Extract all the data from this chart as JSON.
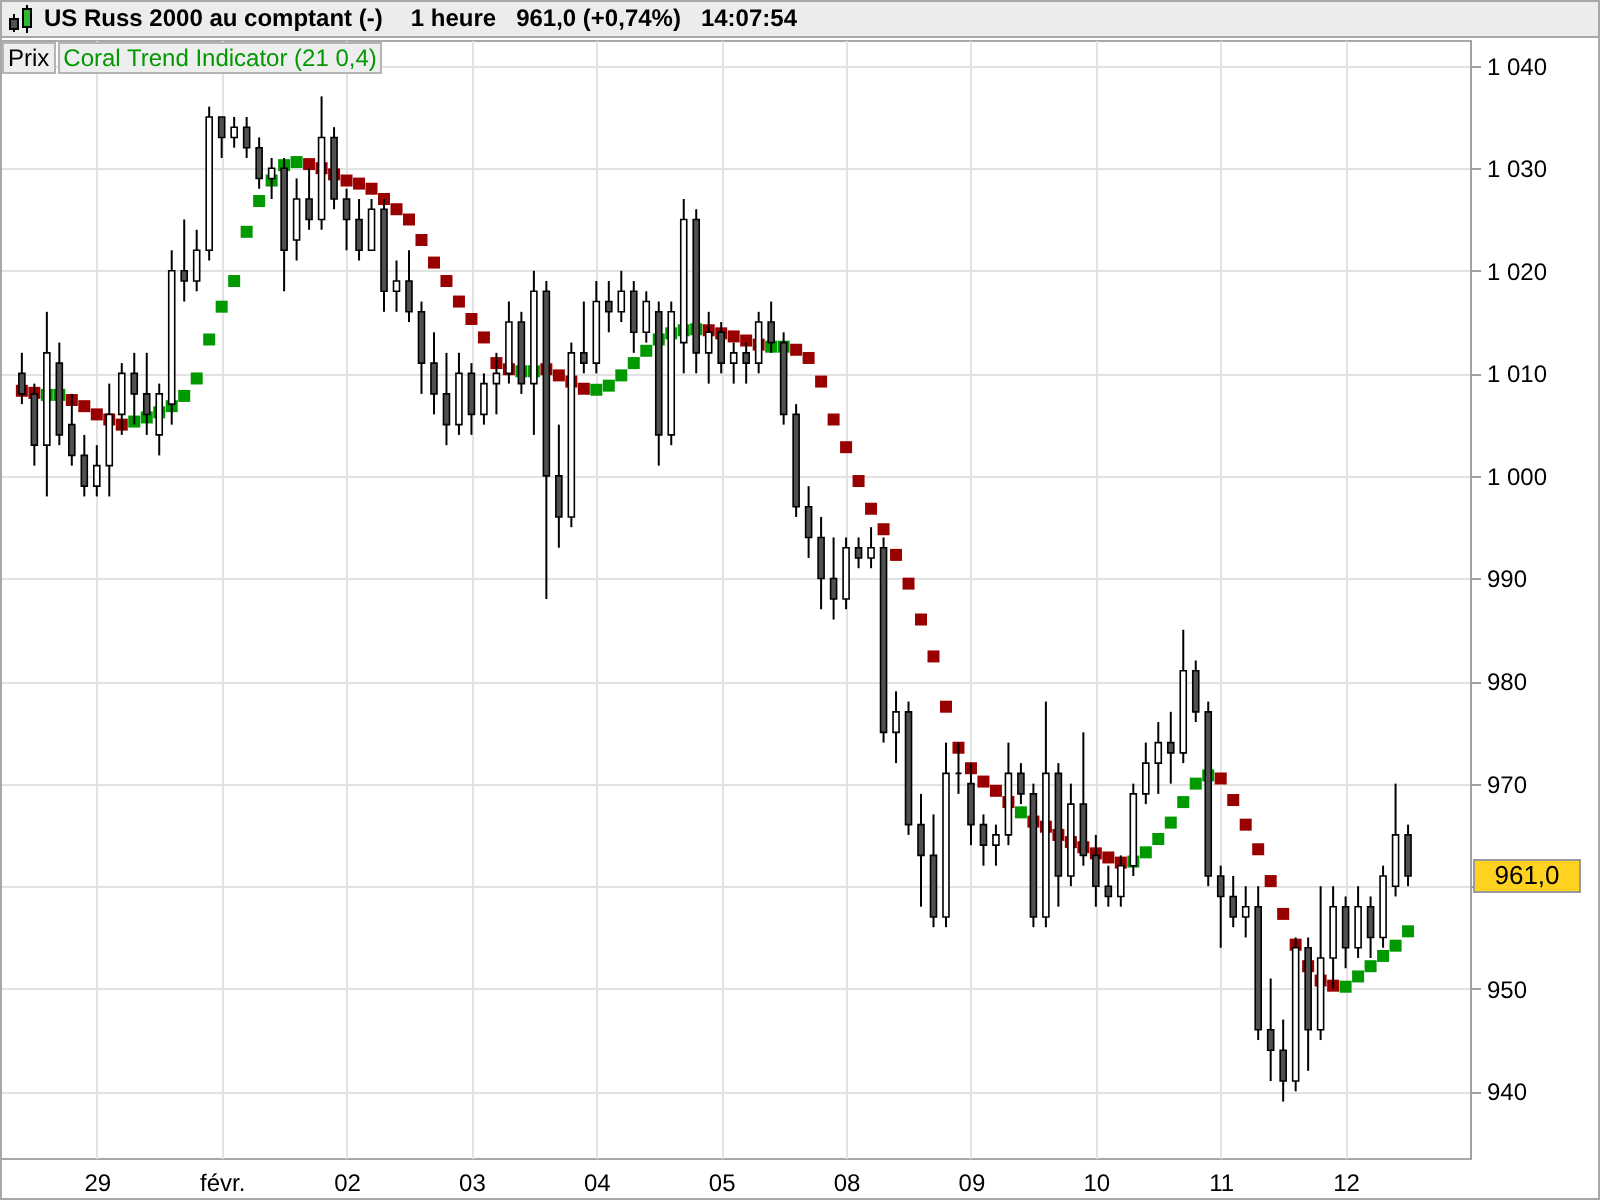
{
  "chart_data": {
    "type": "candlestick",
    "title": "US Russ 2000 au comptant (-)",
    "subtitle": "1 heure   961,0 (+0,74%)   14:07:54",
    "categories": [
      null,
      null,
      null,
      null,
      null,
      null,
      "29",
      null,
      null,
      null,
      null,
      null,
      null,
      null,
      null,
      null,
      "févr.",
      null,
      null,
      null,
      null,
      null,
      null,
      null,
      null,
      null,
      "02",
      null,
      null,
      null,
      null,
      null,
      null,
      null,
      null,
      null,
      "03",
      null,
      null,
      null,
      null,
      null,
      null,
      null,
      null,
      null,
      "04",
      null,
      null,
      null,
      null,
      null,
      null,
      null,
      null,
      null,
      "05",
      null,
      null,
      null,
      null,
      null,
      null,
      null,
      null,
      null,
      "08",
      null,
      null,
      null,
      null,
      null,
      null,
      null,
      null,
      null,
      "09",
      null,
      null,
      null,
      null,
      null,
      null,
      null,
      null,
      null,
      "10",
      null,
      null,
      null,
      null,
      null,
      null,
      null,
      null,
      null,
      "11",
      null,
      null,
      null,
      null,
      null,
      null,
      null,
      null,
      null,
      "12",
      null,
      null,
      null,
      null,
      null
    ],
    "ohlc": [
      [
        1010,
        1012,
        1007,
        1008
      ],
      [
        1008,
        1009,
        1001,
        1003
      ],
      [
        1003,
        1016,
        998,
        1012
      ],
      [
        1011,
        1013,
        1003,
        1004
      ],
      [
        1005,
        1008,
        1001,
        1002
      ],
      [
        1002,
        1004,
        998,
        999
      ],
      [
        999,
        1003,
        998,
        1001
      ],
      [
        1001,
        1009,
        998,
        1006
      ],
      [
        1006,
        1011,
        1004,
        1010
      ],
      [
        1010,
        1012,
        1005,
        1008
      ],
      [
        1008,
        1012,
        1004,
        1006
      ],
      [
        1004,
        1009,
        1002,
        1008
      ],
      [
        1007,
        1022,
        1005,
        1020
      ],
      [
        1020,
        1025,
        1017,
        1019
      ],
      [
        1019,
        1024,
        1018,
        1022
      ],
      [
        1022,
        1036,
        1021,
        1035
      ],
      [
        1035,
        1035,
        1031,
        1033
      ],
      [
        1033,
        1035,
        1032,
        1034
      ],
      [
        1034,
        1035,
        1031,
        1032
      ],
      [
        1032,
        1033,
        1028,
        1029
      ],
      [
        1029,
        1031,
        1027,
        1030
      ],
      [
        1030,
        1031,
        1018,
        1022
      ],
      [
        1023,
        1029,
        1021,
        1027
      ],
      [
        1027,
        1030,
        1024,
        1025
      ],
      [
        1025,
        1037,
        1024,
        1033
      ],
      [
        1033,
        1034,
        1026,
        1027
      ],
      [
        1027,
        1028,
        1022,
        1025
      ],
      [
        1025,
        1027,
        1021,
        1022
      ],
      [
        1022,
        1027,
        1022,
        1026
      ],
      [
        1026,
        1027,
        1016,
        1018
      ],
      [
        1018,
        1021,
        1016,
        1019
      ],
      [
        1019,
        1022,
        1015,
        1016
      ],
      [
        1016,
        1017,
        1008,
        1011
      ],
      [
        1011,
        1014,
        1006,
        1008
      ],
      [
        1008,
        1012,
        1003,
        1005
      ],
      [
        1005,
        1012,
        1004,
        1010
      ],
      [
        1010,
        1011,
        1004,
        1006
      ],
      [
        1006,
        1010,
        1005,
        1009
      ],
      [
        1009,
        1012,
        1006,
        1010
      ],
      [
        1010,
        1017,
        1009,
        1015
      ],
      [
        1015,
        1016,
        1008,
        1009
      ],
      [
        1009,
        1020,
        1004,
        1018
      ],
      [
        1018,
        1019,
        988,
        1000
      ],
      [
        1000,
        1005,
        993,
        996
      ],
      [
        996,
        1013,
        995,
        1012
      ],
      [
        1012,
        1017,
        1010,
        1011
      ],
      [
        1011,
        1019,
        1010,
        1017
      ],
      [
        1017,
        1019,
        1014,
        1016
      ],
      [
        1016,
        1020,
        1015,
        1018
      ],
      [
        1018,
        1019,
        1012,
        1014
      ],
      [
        1014,
        1018,
        1013,
        1017
      ],
      [
        1016,
        1017,
        1001,
        1004
      ],
      [
        1004,
        1017,
        1003,
        1016
      ],
      [
        1013,
        1027,
        1010,
        1025
      ],
      [
        1025,
        1026,
        1010,
        1012
      ],
      [
        1012,
        1016,
        1009,
        1014
      ],
      [
        1014,
        1015,
        1010,
        1011
      ],
      [
        1011,
        1013,
        1009,
        1012
      ],
      [
        1012,
        1013,
        1009,
        1011
      ],
      [
        1011,
        1016,
        1010,
        1015
      ],
      [
        1015,
        1017,
        1012,
        1013
      ],
      [
        1013,
        1014,
        1005,
        1006
      ],
      [
        1006,
        1007,
        996,
        997
      ],
      [
        997,
        999,
        992,
        994
      ],
      [
        994,
        996,
        987,
        990
      ],
      [
        990,
        994,
        986,
        988
      ],
      [
        988,
        994,
        987,
        993
      ],
      [
        993,
        994,
        991,
        992
      ],
      [
        992,
        995,
        991,
        993
      ],
      [
        993,
        994,
        974,
        975
      ],
      [
        975,
        979,
        972,
        977
      ],
      [
        977,
        978,
        965,
        966
      ],
      [
        966,
        969,
        958,
        963
      ],
      [
        963,
        967,
        956,
        957
      ],
      [
        957,
        974,
        956,
        971
      ],
      [
        971,
        974,
        969,
        971
      ],
      [
        970,
        972,
        964,
        966
      ],
      [
        966,
        967,
        962,
        964
      ],
      [
        964,
        966,
        962,
        965
      ],
      [
        965,
        974,
        964,
        971
      ],
      [
        971,
        972,
        968,
        969
      ],
      [
        969,
        970,
        956,
        957
      ],
      [
        957,
        978,
        956,
        971
      ],
      [
        971,
        972,
        958,
        961
      ],
      [
        961,
        970,
        960,
        968
      ],
      [
        968,
        975,
        962,
        963
      ],
      [
        963,
        965,
        958,
        960
      ],
      [
        960,
        962,
        958,
        959
      ],
      [
        959,
        963,
        958,
        962
      ],
      [
        962,
        970,
        961,
        969
      ],
      [
        969,
        974,
        968,
        972
      ],
      [
        972,
        976,
        969,
        974
      ],
      [
        974,
        977,
        970,
        973
      ],
      [
        973,
        985,
        972,
        981
      ],
      [
        981,
        982,
        976,
        977
      ],
      [
        977,
        978,
        960,
        961
      ],
      [
        961,
        962,
        954,
        959
      ],
      [
        959,
        961,
        956,
        957
      ],
      [
        957,
        960,
        955,
        958
      ],
      [
        958,
        960,
        945,
        946
      ],
      [
        946,
        951,
        941,
        944
      ],
      [
        944,
        947,
        939,
        941
      ],
      [
        941,
        955,
        940,
        954
      ],
      [
        954,
        955,
        942,
        946
      ],
      [
        946,
        960,
        945,
        953
      ],
      [
        953,
        960,
        950,
        958
      ],
      [
        958,
        959,
        952,
        954
      ],
      [
        954,
        960,
        953,
        958
      ],
      [
        958,
        959,
        953,
        955
      ],
      [
        955,
        962,
        954,
        961
      ],
      [
        960,
        970,
        959,
        965
      ],
      [
        965,
        966,
        960,
        961
      ]
    ],
    "series": [
      {
        "name": "Coral Trend Indicator (21 0,4)",
        "type": "scatter",
        "color": "#009900",
        "colors": [
          "#990000",
          "#990000",
          "#009900",
          "#009900",
          "#990000",
          "#990000",
          "#990000",
          "#990000",
          "#990000",
          "#009900",
          "#009900",
          "#009900",
          "#009900",
          "#009900",
          "#009900",
          "#009900",
          "#009900",
          "#009900",
          "#009900",
          "#009900",
          "#009900",
          "#009900",
          "#009900",
          "#990000",
          "#990000",
          "#990000",
          "#990000",
          "#990000",
          "#990000",
          "#990000",
          "#990000",
          "#990000",
          "#990000",
          "#990000",
          "#990000",
          "#990000",
          "#990000",
          "#990000",
          "#990000",
          "#990000",
          "#009900",
          "#009900",
          "#990000",
          "#990000",
          "#990000",
          "#990000",
          "#009900",
          "#009900",
          "#009900",
          "#009900",
          "#009900",
          "#009900",
          "#009900",
          "#009900",
          "#009900",
          "#990000",
          "#990000",
          "#990000",
          "#990000",
          "#990000",
          "#009900",
          "#009900",
          "#990000",
          "#990000",
          "#990000",
          "#990000",
          "#990000",
          "#990000",
          "#990000",
          "#990000",
          "#990000",
          "#990000",
          "#990000",
          "#990000",
          "#990000",
          "#990000",
          "#990000",
          "#990000",
          "#990000",
          "#990000",
          "#009900",
          "#990000",
          "#990000",
          "#990000",
          "#990000",
          "#990000",
          "#990000",
          "#990000",
          "#990000",
          "#009900",
          "#009900",
          "#009900",
          "#009900",
          "#009900",
          "#009900",
          "#009900",
          "#990000",
          "#990000",
          "#990000",
          "#990000",
          "#990000",
          "#990000",
          "#990000",
          "#990000",
          "#990000",
          "#990000",
          "#009900",
          "#009900",
          "#009900",
          "#009900",
          "#009900",
          "#009900"
        ],
        "values": [
          1008.3,
          1008.1,
          1007.9,
          1007.9,
          1007.4,
          1006.8,
          1006,
          1005.5,
          1005,
          1005.3,
          1005.7,
          1006.2,
          1006.8,
          1007.8,
          1009.5,
          1013.3,
          1016.5,
          1019,
          1023.8,
          1026.8,
          1028.8,
          1030.3,
          1030.6,
          1030.4,
          1030,
          1029.4,
          1028.8,
          1028.5,
          1028,
          1027,
          1026,
          1025,
          1023,
          1020.8,
          1019,
          1017,
          1015.3,
          1013.5,
          1011,
          1010.4,
          1010.2,
          1010.2,
          1010.4,
          1009.8,
          1009.2,
          1008.5,
          1008.4,
          1008.8,
          1009.8,
          1011,
          1012.2,
          1013.3,
          1013.9,
          1014.2,
          1014.3,
          1014.2,
          1013.9,
          1013.6,
          1013.2,
          1012.8,
          1012.6,
          1012.6,
          1012.3,
          1011.5,
          1009.2,
          1005.5,
          1002.8,
          999.5,
          996.8,
          994.8,
          992.3,
          989.5,
          986,
          982.4,
          977.5,
          973.5,
          971.5,
          970.2,
          969.3,
          968.2,
          967.2,
          966.3,
          965.8,
          965,
          964.3,
          963.8,
          963.2,
          962.8,
          962.3,
          962.4,
          963.3,
          964.6,
          966.2,
          968.2,
          970,
          970.8,
          970.5,
          968.4,
          966,
          963.6,
          960.5,
          957.3,
          954.3,
          952.2,
          950.8,
          950.3,
          950.2,
          951.2,
          952.2,
          953.2,
          954.2,
          955.6
        ]
      }
    ],
    "ylim": [
      933.5,
      1042.5
    ],
    "yticks": [
      940,
      950,
      {
        "value": 960,
        "label": null
      },
      970,
      980,
      990,
      {
        "value": 1000,
        "label": "1 000"
      },
      {
        "value": 1010,
        "label": "1 010"
      },
      {
        "value": 1020,
        "label": "1 020"
      },
      {
        "value": 1030,
        "label": "1 030"
      },
      {
        "value": 1040,
        "label": "1 040"
      }
    ],
    "grid": true,
    "legend": "top left",
    "marker": "square",
    "annotations": [
      "Prix",
      "961,0"
    ]
  }
}
